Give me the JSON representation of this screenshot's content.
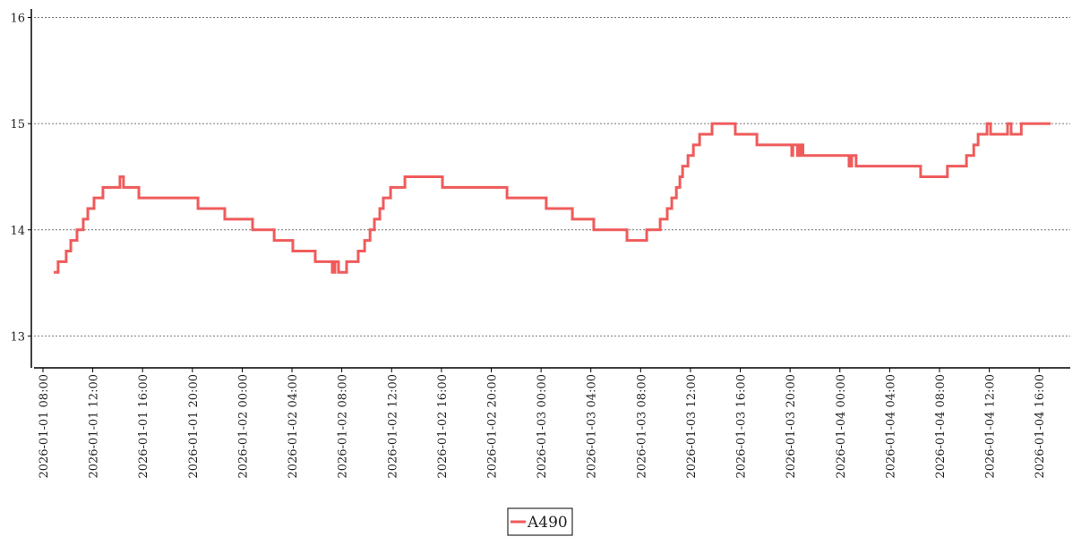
{
  "chart_data": {
    "type": "line",
    "step": "post",
    "x": [
      "2026-01-01 08:52",
      "2026-01-01 09:13",
      "2026-01-01 09:52",
      "2026-01-01 10:14",
      "2026-01-01 10:44",
      "2026-01-01 11:14",
      "2026-01-01 11:36",
      "2026-01-01 12:06",
      "2026-01-01 12:49",
      "2026-01-01 14:11",
      "2026-01-01 14:28",
      "2026-01-01 15:42",
      "2026-01-01 20:27",
      "2026-01-01 22:36",
      "2026-01-02 00:50",
      "2026-01-02 02:34",
      "2026-01-02 04:04",
      "2026-01-02 05:52",
      "2026-01-02 07:14",
      "2026-01-02 07:27",
      "2026-01-02 07:44",
      "2026-01-02 08:23",
      "2026-01-02 09:19",
      "2026-01-02 09:50",
      "2026-01-02 10:16",
      "2026-01-02 10:37",
      "2026-01-02 11:03",
      "2026-01-02 11:20",
      "2026-01-02 11:55",
      "2026-01-02 13:04",
      "2026-01-02 16:05",
      "2026-01-02 21:16",
      "2026-01-03 00:25",
      "2026-01-03 02:31",
      "2026-01-03 04:14",
      "2026-01-03 06:54",
      "2026-01-03 08:29",
      "2026-01-03 09:34",
      "2026-01-03 10:08",
      "2026-01-03 10:30",
      "2026-01-03 10:52",
      "2026-01-03 11:09",
      "2026-01-03 11:22",
      "2026-01-03 11:48",
      "2026-01-03 12:14",
      "2026-01-03 12:44",
      "2026-01-03 13:44",
      "2026-01-03 15:36",
      "2026-01-03 17:20",
      "2026-01-03 20:08",
      "2026-01-03 20:13",
      "2026-01-03 20:36",
      "2026-01-03 20:49",
      "2026-01-03 21:02",
      "2026-01-04 00:44",
      "2026-01-04 00:57",
      "2026-01-04 01:18",
      "2026-01-04 06:29",
      "2026-01-04 08:38",
      "2026-01-04 10:10",
      "2026-01-04 10:45",
      "2026-01-04 11:06",
      "2026-01-04 11:49",
      "2026-01-04 12:06",
      "2026-01-04 13:28",
      "2026-01-04 13:45",
      "2026-01-04 14:34",
      "2026-01-04 16:56"
    ],
    "series": [
      {
        "name": "A490",
        "color": "#ef5b5b",
        "values": [
          13.6,
          13.7,
          13.8,
          13.9,
          14.0,
          14.1,
          14.2,
          14.3,
          14.4,
          14.5,
          14.4,
          14.3,
          14.2,
          14.1,
          14.0,
          13.9,
          13.8,
          13.7,
          13.6,
          13.7,
          13.6,
          13.7,
          13.8,
          13.9,
          14.0,
          14.1,
          14.2,
          14.3,
          14.4,
          14.5,
          14.4,
          14.3,
          14.2,
          14.1,
          14.0,
          13.9,
          14.0,
          14.1,
          14.2,
          14.3,
          14.4,
          14.5,
          14.6,
          14.7,
          14.8,
          14.9,
          15.0,
          14.9,
          14.8,
          14.7,
          14.8,
          14.7,
          14.8,
          14.7,
          14.6,
          14.7,
          14.6,
          14.5,
          14.6,
          14.7,
          14.8,
          14.9,
          15.0,
          14.9,
          15.0,
          14.9,
          15.0,
          15.0
        ]
      }
    ],
    "xlim": [
      "2026-01-01 07:04",
      "2026-01-04 18:30"
    ],
    "xticks": [
      "2026-01-01 08:00",
      "2026-01-01 12:00",
      "2026-01-01 16:00",
      "2026-01-01 20:00",
      "2026-01-02 00:00",
      "2026-01-02 04:00",
      "2026-01-02 08:00",
      "2026-01-02 12:00",
      "2026-01-02 16:00",
      "2026-01-02 20:00",
      "2026-01-03 00:00",
      "2026-01-03 04:00",
      "2026-01-03 08:00",
      "2026-01-03 12:00",
      "2026-01-03 16:00",
      "2026-01-03 20:00",
      "2026-01-04 00:00",
      "2026-01-04 04:00",
      "2026-01-04 08:00",
      "2026-01-04 12:00",
      "2026-01-04 16:00"
    ],
    "ylim": [
      12.7,
      16.08
    ],
    "yticks": [
      13,
      14,
      15,
      16
    ],
    "grid": true,
    "legend": "bottom"
  }
}
